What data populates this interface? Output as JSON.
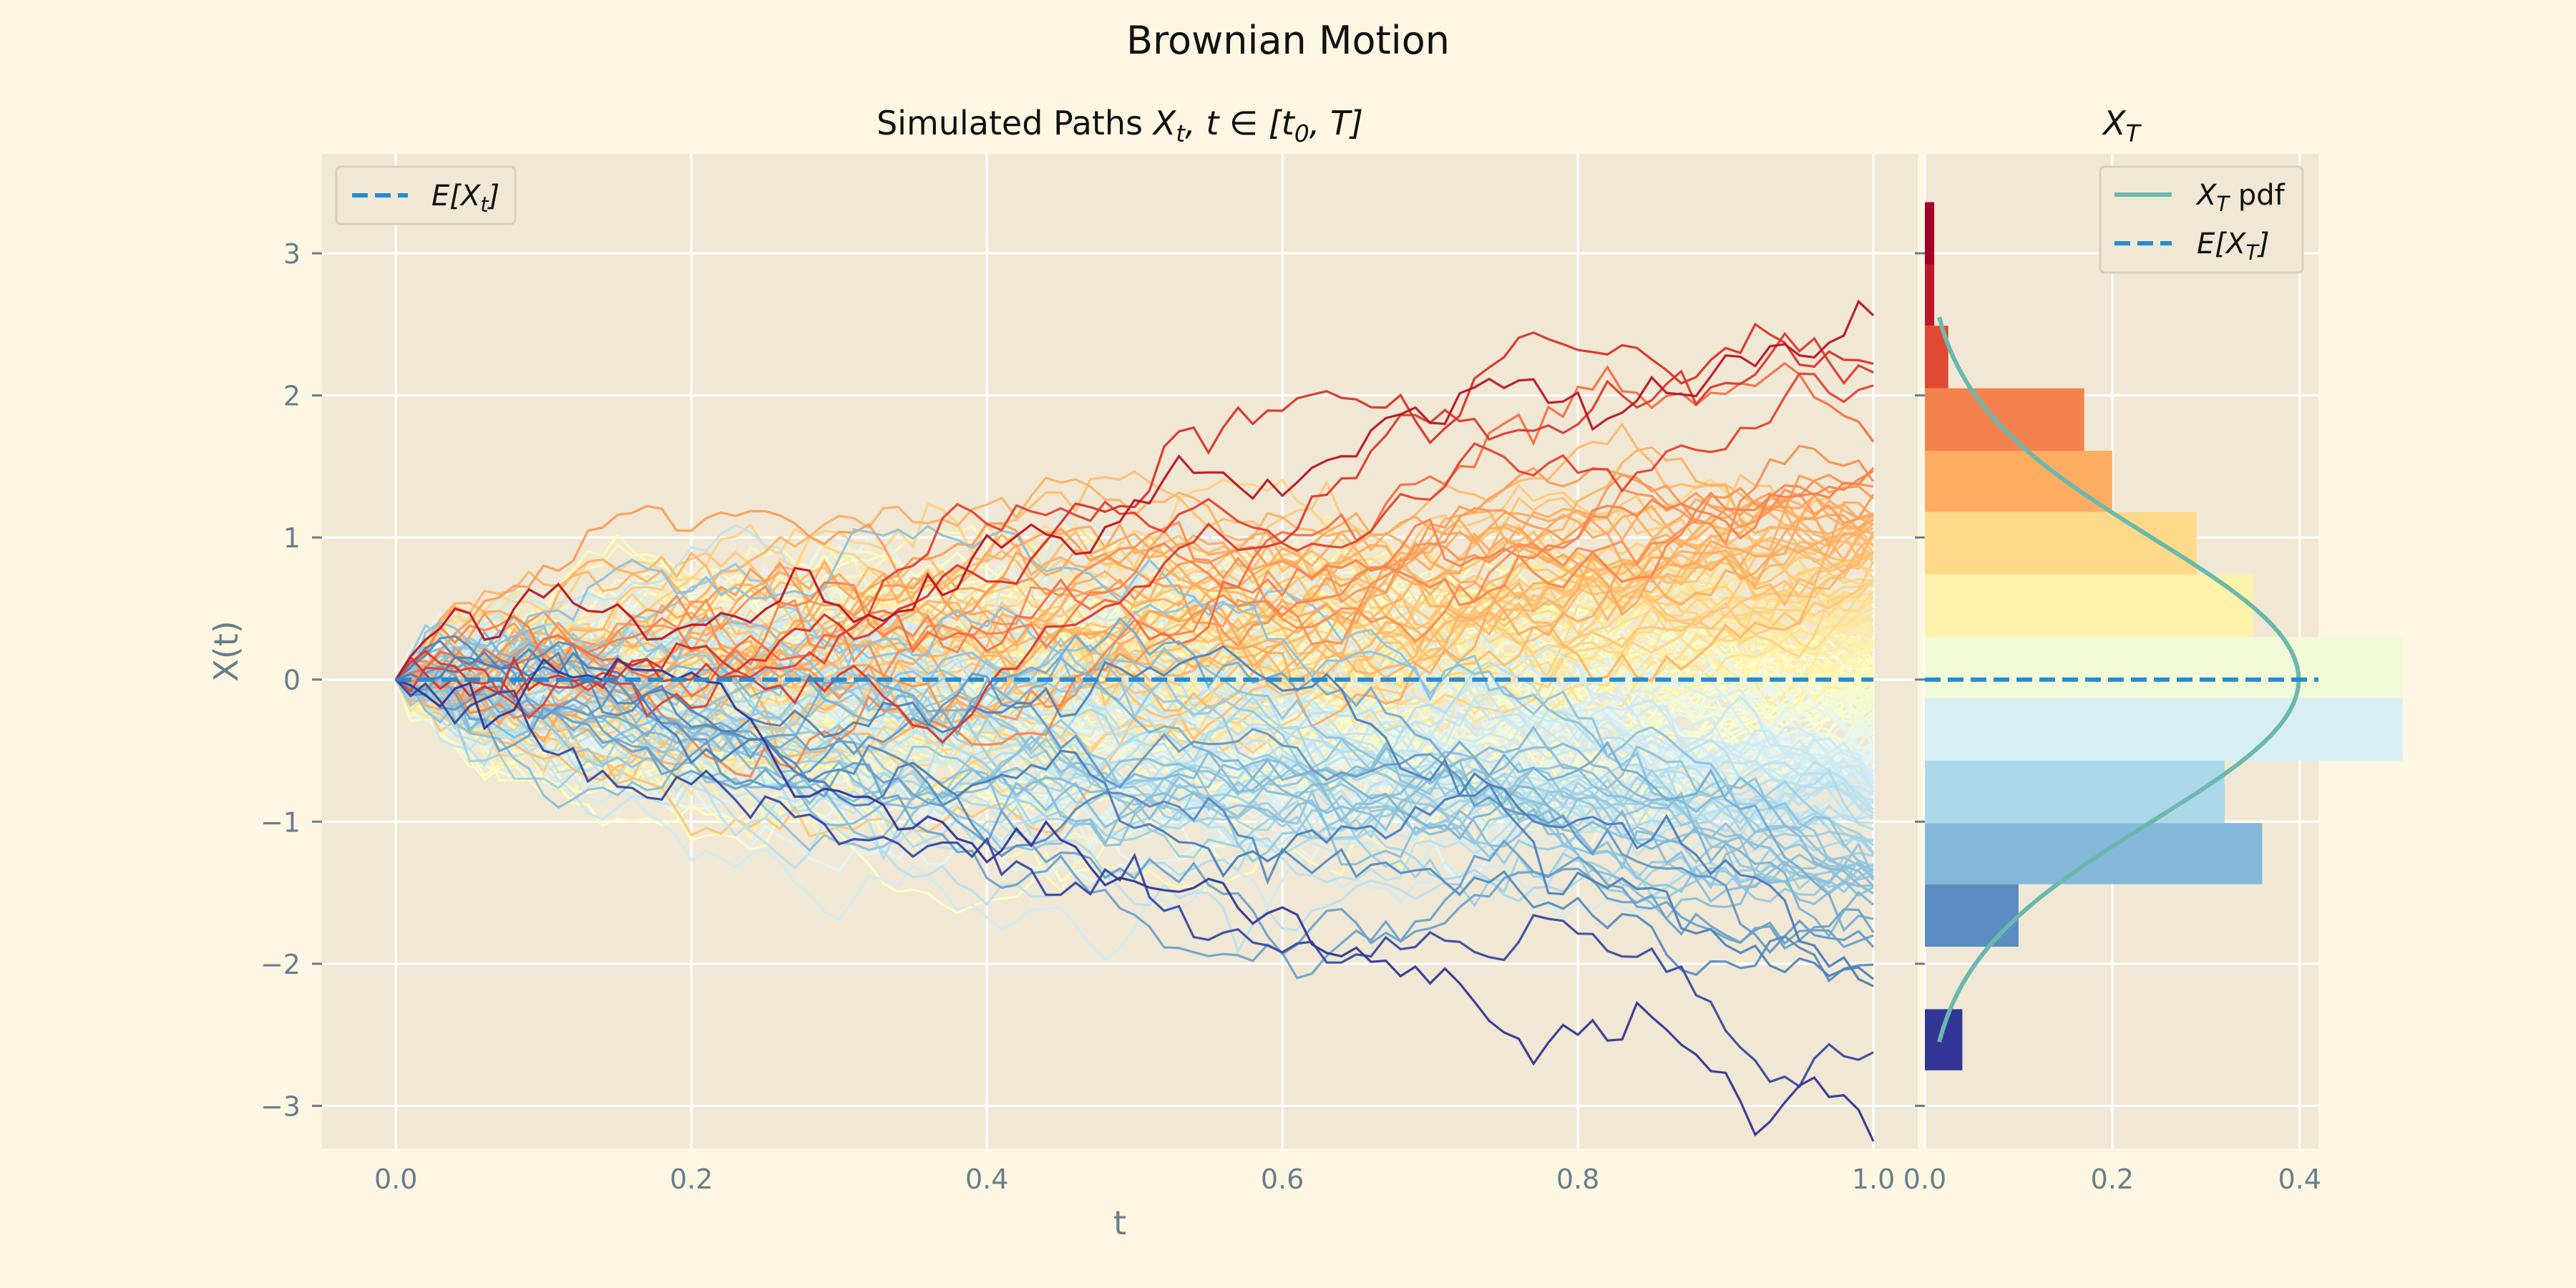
{
  "figure": {
    "title": "Brownian Motion",
    "background": "#fdf6e3",
    "axes_background": "#f0e8d5",
    "grid_color": "#ffffff",
    "tick_color": "#667f8b"
  },
  "chart_data": [
    {
      "type": "line",
      "panel": "paths",
      "title_prefix": "Simulated Paths ",
      "title_math": [
        "X",
        "t",
        ", t ∈ [t",
        "0",
        ", T]"
      ],
      "xlabel": "t",
      "ylabel": "X(t)",
      "xlim": [
        -0.05,
        1.03
      ],
      "ylim": [
        -3.3,
        3.7
      ],
      "xticks": [
        0.0,
        0.2,
        0.4,
        0.6,
        0.8,
        1.0
      ],
      "xtick_labels": [
        "0.0",
        "0.2",
        "0.4",
        "0.6",
        "0.8",
        "1.0"
      ],
      "yticks": [
        3,
        2,
        1,
        0,
        -1,
        -2,
        -3
      ],
      "ytick_labels": [
        "3",
        "2",
        "1",
        "0",
        "−1",
        "−2",
        "−3"
      ],
      "grid": true,
      "num_paths": 200,
      "num_steps": 100,
      "t_range": [
        0,
        1
      ],
      "colormap": "RdYlBu_r",
      "colormap_colors": [
        "#313695",
        "#4575b4",
        "#74add1",
        "#abd9e9",
        "#e0f3f8",
        "#ffffbf",
        "#fee090",
        "#fdae61",
        "#f46d43",
        "#d73027",
        "#a50026"
      ],
      "series": [
        {
          "name": "E[X_t]",
          "legend_label": [
            "E[X",
            "t",
            "]"
          ],
          "style": "dashed",
          "color": "#268bd2",
          "x": [
            0,
            1
          ],
          "y": [
            0,
            0
          ]
        }
      ],
      "legend": "top-left"
    },
    {
      "type": "bar",
      "panel": "terminal-distribution",
      "orientation": "horizontal",
      "title_math": [
        "X",
        "T"
      ],
      "xlim": [
        0,
        0.42
      ],
      "xticks": [
        0.0,
        0.2,
        0.4
      ],
      "xtick_labels": [
        "0.0",
        "0.2",
        "0.4"
      ],
      "grid": true,
      "bins": [
        {
          "y0": -2.75,
          "y1": -2.32,
          "value": 0.04,
          "color": "#313695"
        },
        {
          "y0": -1.88,
          "y1": -1.44,
          "value": 0.1,
          "color": "#5a8cc2"
        },
        {
          "y0": -1.44,
          "y1": -1.01,
          "value": 0.36,
          "color": "#84b8db"
        },
        {
          "y0": -1.01,
          "y1": -0.57,
          "value": 0.32,
          "color": "#acd9e9"
        },
        {
          "y0": -0.57,
          "y1": -0.13,
          "value": 0.51,
          "color": "#d6eef4"
        },
        {
          "y0": -0.13,
          "y1": 0.3,
          "value": 0.51,
          "color": "#f1f9d6"
        },
        {
          "y0": 0.3,
          "y1": 0.74,
          "value": 0.35,
          "color": "#fff2aa"
        },
        {
          "y0": 0.74,
          "y1": 1.18,
          "value": 0.29,
          "color": "#fed98a"
        },
        {
          "y0": 1.18,
          "y1": 1.61,
          "value": 0.2,
          "color": "#fdac62"
        },
        {
          "y0": 1.61,
          "y1": 2.05,
          "value": 0.17,
          "color": "#f5824e"
        },
        {
          "y0": 2.05,
          "y1": 2.49,
          "value": 0.025,
          "color": "#e04a33"
        },
        {
          "y0": 2.49,
          "y1": 2.92,
          "value": 0.01,
          "color": "#c0182a"
        },
        {
          "y0": 2.92,
          "y1": 3.36,
          "value": 0.01,
          "color": "#a50026"
        }
      ],
      "pdf_series": {
        "name": "X_T pdf",
        "legend_label": [
          "X",
          "T",
          " pdf"
        ],
        "color": "#6bb8ae",
        "mean": 0,
        "std": 1,
        "y_range": [
          -2.55,
          2.55
        ]
      },
      "mean_series": {
        "name": "E[X_T]",
        "legend_label": [
          "E[X",
          "T",
          "]"
        ],
        "style": "dashed",
        "color": "#268bd2",
        "y": 0
      },
      "legend": "top-right"
    }
  ]
}
